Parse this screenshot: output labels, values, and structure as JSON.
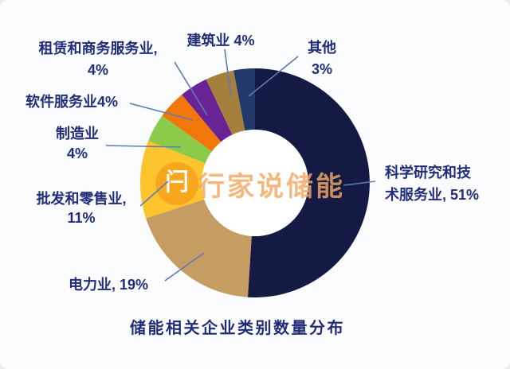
{
  "chart_data": {
    "type": "pie",
    "subtype": "donut",
    "title": "储能相关企业类别数量分布",
    "unit": "%",
    "direction": "clockwise",
    "start_angle_deg": 0,
    "inner_radius_ratio": 0.465,
    "legend": "none",
    "segments": [
      {
        "name": "科学研究和技术服务业",
        "value": 51,
        "color": "#151a45",
        "callout": [
          "科学研究和技",
          "术服务业, 51%"
        ]
      },
      {
        "name": "电力业",
        "value": 19,
        "color": "#c59d62",
        "callout": [
          "电力业,  19%"
        ]
      },
      {
        "name": "批发和零售业",
        "value": 11,
        "color": "#fdc42d",
        "callout": [
          "批发和零售业,",
          "11%"
        ]
      },
      {
        "name": "制造业",
        "value": 4,
        "color": "#8ccb49",
        "callout": [
          "制造业",
          "4%"
        ]
      },
      {
        "name": "软件服务业",
        "value": 4,
        "color": "#f2770b",
        "callout": [
          "软件服务业4%"
        ]
      },
      {
        "name": "租赁和商务服务业",
        "value": 4,
        "color": "#6a2394",
        "callout": [
          "租赁和商务服务业,",
          "4%"
        ]
      },
      {
        "name": "建筑业",
        "value": 4,
        "color": "#a3813c",
        "callout": [
          "建筑业 4%"
        ]
      },
      {
        "name": "其他",
        "value": 3,
        "color": "#223a6b",
        "callout": [
          "其他",
          "3%"
        ]
      }
    ]
  },
  "watermark": {
    "text": "行家说储能",
    "logo_glyph": "闩",
    "logo_color": "#f6a61d"
  },
  "style": {
    "background": "#fbfcfd",
    "text_color": "#212d78",
    "leader_line_color": "#5d7ab5",
    "hole_color": "#ffffff"
  }
}
